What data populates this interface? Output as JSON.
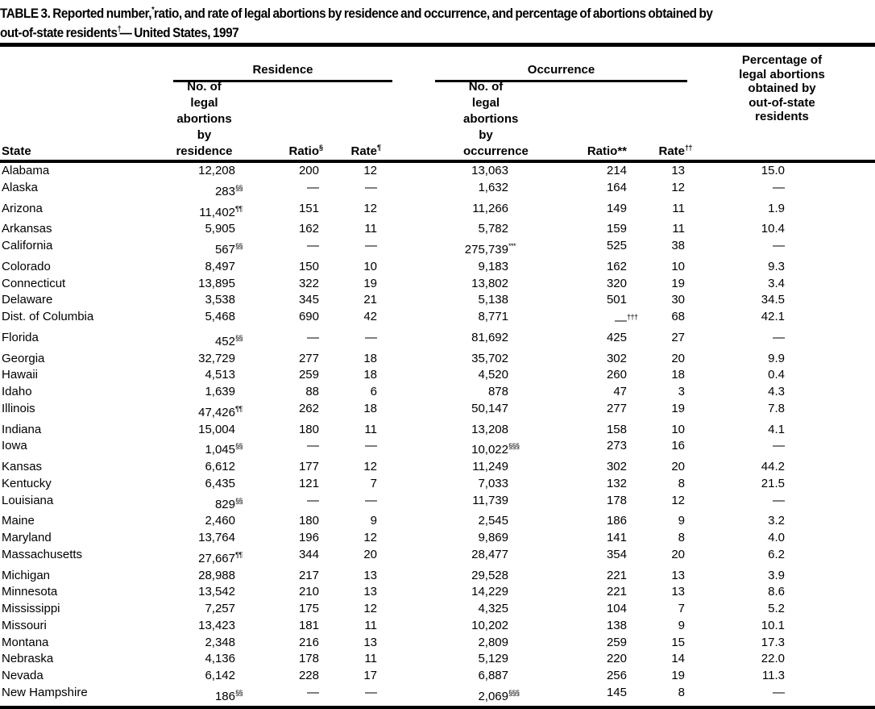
{
  "title": {
    "line1": "TABLE 3. Reported number,^{*} ratio, and rate of legal abortions by residence and occurrence, and percentage of abortions obtained by",
    "line2": "out-of-state residents^{†} — United States, 1997"
  },
  "table": {
    "groups": {
      "residence": "Residence",
      "occurrence": "Occurrence"
    },
    "headers": {
      "state": "State",
      "res_no": "No. of\nlegal abortions\nby residence",
      "res_ratio": "Ratio^{§}",
      "res_rate": "Rate^{¶}",
      "occ_no": "No. of\nlegal abortions\nby occurrence",
      "occ_ratio": "Ratio**",
      "occ_rate": "Rate^{††}",
      "pct": "Percentage of\nlegal abortions\nobtained by\nout-of-state\nresidents"
    },
    "columns": [
      "state",
      "res_no",
      "res_ratio",
      "res_rate",
      "occ_no",
      "occ_ratio",
      "occ_rate",
      "pct"
    ],
    "rows": [
      [
        "Alabama",
        "12,208",
        "200",
        "12",
        "13,063",
        "214",
        "13",
        "15.0"
      ],
      [
        "Alaska",
        "283^{§§}",
        "—",
        "—",
        "1,632",
        "164",
        "12",
        "—"
      ],
      [
        "Arizona",
        "11,402^{¶¶}",
        "151",
        "12",
        "11,266",
        "149",
        "11",
        "1.9"
      ],
      [
        "Arkansas",
        "5,905",
        "162",
        "11",
        "5,782",
        "159",
        "11",
        "10.4"
      ],
      [
        "California",
        "567^{§§}",
        "—",
        "—",
        "275,739^{***}",
        "525",
        "38",
        "—"
      ],
      [
        "Colorado",
        "8,497",
        "150",
        "10",
        "9,183",
        "162",
        "10",
        "9.3"
      ],
      [
        "Connecticut",
        "13,895",
        "322",
        "19",
        "13,802",
        "320",
        "19",
        "3.4"
      ],
      [
        "Delaware",
        "3,538",
        "345",
        "21",
        "5,138",
        "501",
        "30",
        "34.5"
      ],
      [
        "Dist. of Columbia",
        "5,468",
        "690",
        "42",
        "8,771",
        "—^{†††}",
        "68",
        "42.1"
      ],
      [
        "Florida",
        "452^{§§}",
        "—",
        "—",
        "81,692",
        "425",
        "27",
        "—"
      ],
      [
        "Georgia",
        "32,729",
        "277",
        "18",
        "35,702",
        "302",
        "20",
        "9.9"
      ],
      [
        "Hawaii",
        "4,513",
        "259",
        "18",
        "4,520",
        "260",
        "18",
        "0.4"
      ],
      [
        "Idaho",
        "1,639",
        "88",
        "6",
        "878",
        "47",
        "3",
        "4.3"
      ],
      [
        "Illinois",
        "47,426^{¶¶}",
        "262",
        "18",
        "50,147",
        "277",
        "19",
        "7.8"
      ],
      [
        "Indiana",
        "15,004",
        "180",
        "11",
        "13,208",
        "158",
        "10",
        "4.1"
      ],
      [
        "Iowa",
        "1,045^{§§}",
        "—",
        "—",
        "10,022^{§§§}",
        "273",
        "16",
        "—"
      ],
      [
        "Kansas",
        "6,612",
        "177",
        "12",
        "11,249",
        "302",
        "20",
        "44.2"
      ],
      [
        "Kentucky",
        "6,435",
        "121",
        "7",
        "7,033",
        "132",
        "8",
        "21.5"
      ],
      [
        "Louisiana",
        "829^{§§}",
        "—",
        "—",
        "11,739",
        "178",
        "12",
        "—"
      ],
      [
        "Maine",
        "2,460",
        "180",
        "9",
        "2,545",
        "186",
        "9",
        "3.2"
      ],
      [
        "Maryland",
        "13,764",
        "196",
        "12",
        "9,869",
        "141",
        "8",
        "4.0"
      ],
      [
        "Massachusetts",
        "27,667^{¶¶}",
        "344",
        "20",
        "28,477",
        "354",
        "20",
        "6.2"
      ],
      [
        "Michigan",
        "28,988",
        "217",
        "13",
        "29,528",
        "221",
        "13",
        "3.9"
      ],
      [
        "Minnesota",
        "13,542",
        "210",
        "13",
        "14,229",
        "221",
        "13",
        "8.6"
      ],
      [
        "Mississippi",
        "7,257",
        "175",
        "12",
        "4,325",
        "104",
        "7",
        "5.2"
      ],
      [
        "Missouri",
        "13,423",
        "181",
        "11",
        "10,202",
        "138",
        "9",
        "10.1"
      ],
      [
        "Montana",
        "2,348",
        "216",
        "13",
        "2,809",
        "259",
        "15",
        "17.3"
      ],
      [
        "Nebraska",
        "4,136",
        "178",
        "11",
        "5,129",
        "220",
        "14",
        "22.0"
      ],
      [
        "Nevada",
        "6,142",
        "228",
        "17",
        "6,887",
        "256",
        "19",
        "11.3"
      ],
      [
        "New Hampshire",
        "186^{§§}",
        "—",
        "—",
        "2,069^{§§§}",
        "145",
        "8",
        "—"
      ]
    ]
  },
  "colors": {
    "text": "#000000",
    "background": "#ffffff",
    "rule": "#000000"
  }
}
